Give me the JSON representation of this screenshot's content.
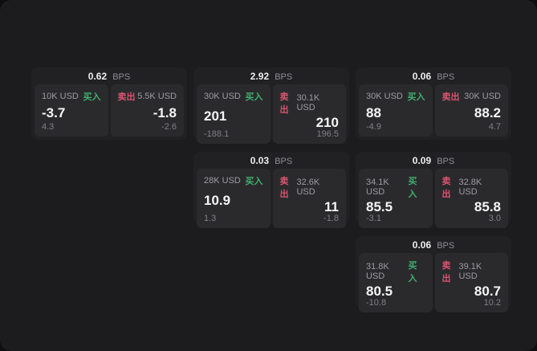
{
  "labels": {
    "bps": "BPS",
    "buy": "买入",
    "sell": "卖出"
  },
  "colors": {
    "background": "#0e0e0f",
    "panel": "#1c1c1e",
    "card": "#212124",
    "cell": "#2a2a2d",
    "buy_green": "#3faf6d",
    "sell_red": "#d9546f",
    "value_white": "#f5f5f7",
    "muted_gray": "#9c9ca1"
  },
  "cards": [
    {
      "bps": "0.62",
      "buy": {
        "amount": "10K USD",
        "value": "-3.7",
        "delta": "4.3"
      },
      "sell": {
        "amount": "5.5K USD",
        "value": "-1.8",
        "delta": "-2.6"
      }
    },
    {
      "bps": "2.92",
      "buy": {
        "amount": "30K USD",
        "value": "201",
        "delta": "-188.1"
      },
      "sell": {
        "amount": "30.1K USD",
        "value": "210",
        "delta": "196.5"
      }
    },
    {
      "bps": "0.06",
      "buy": {
        "amount": "30K USD",
        "value": "88",
        "delta": "-4.9"
      },
      "sell": {
        "amount": "30K USD",
        "value": "88.2",
        "delta": "4.7"
      }
    },
    {
      "bps": "0.03",
      "buy": {
        "amount": "28K USD",
        "value": "10.9",
        "delta": "1.3"
      },
      "sell": {
        "amount": "32.6K USD",
        "value": "11",
        "delta": "-1.8"
      }
    },
    {
      "bps": "0.09",
      "buy": {
        "amount": "34.1K USD",
        "value": "85.5",
        "delta": "-3.1"
      },
      "sell": {
        "amount": "32.8K USD",
        "value": "85.8",
        "delta": "3.0"
      }
    },
    {
      "bps": "0.06",
      "buy": {
        "amount": "31.8K USD",
        "value": "80.5",
        "delta": "-10.8"
      },
      "sell": {
        "amount": "39.1K USD",
        "value": "80.7",
        "delta": "10.2"
      }
    }
  ]
}
